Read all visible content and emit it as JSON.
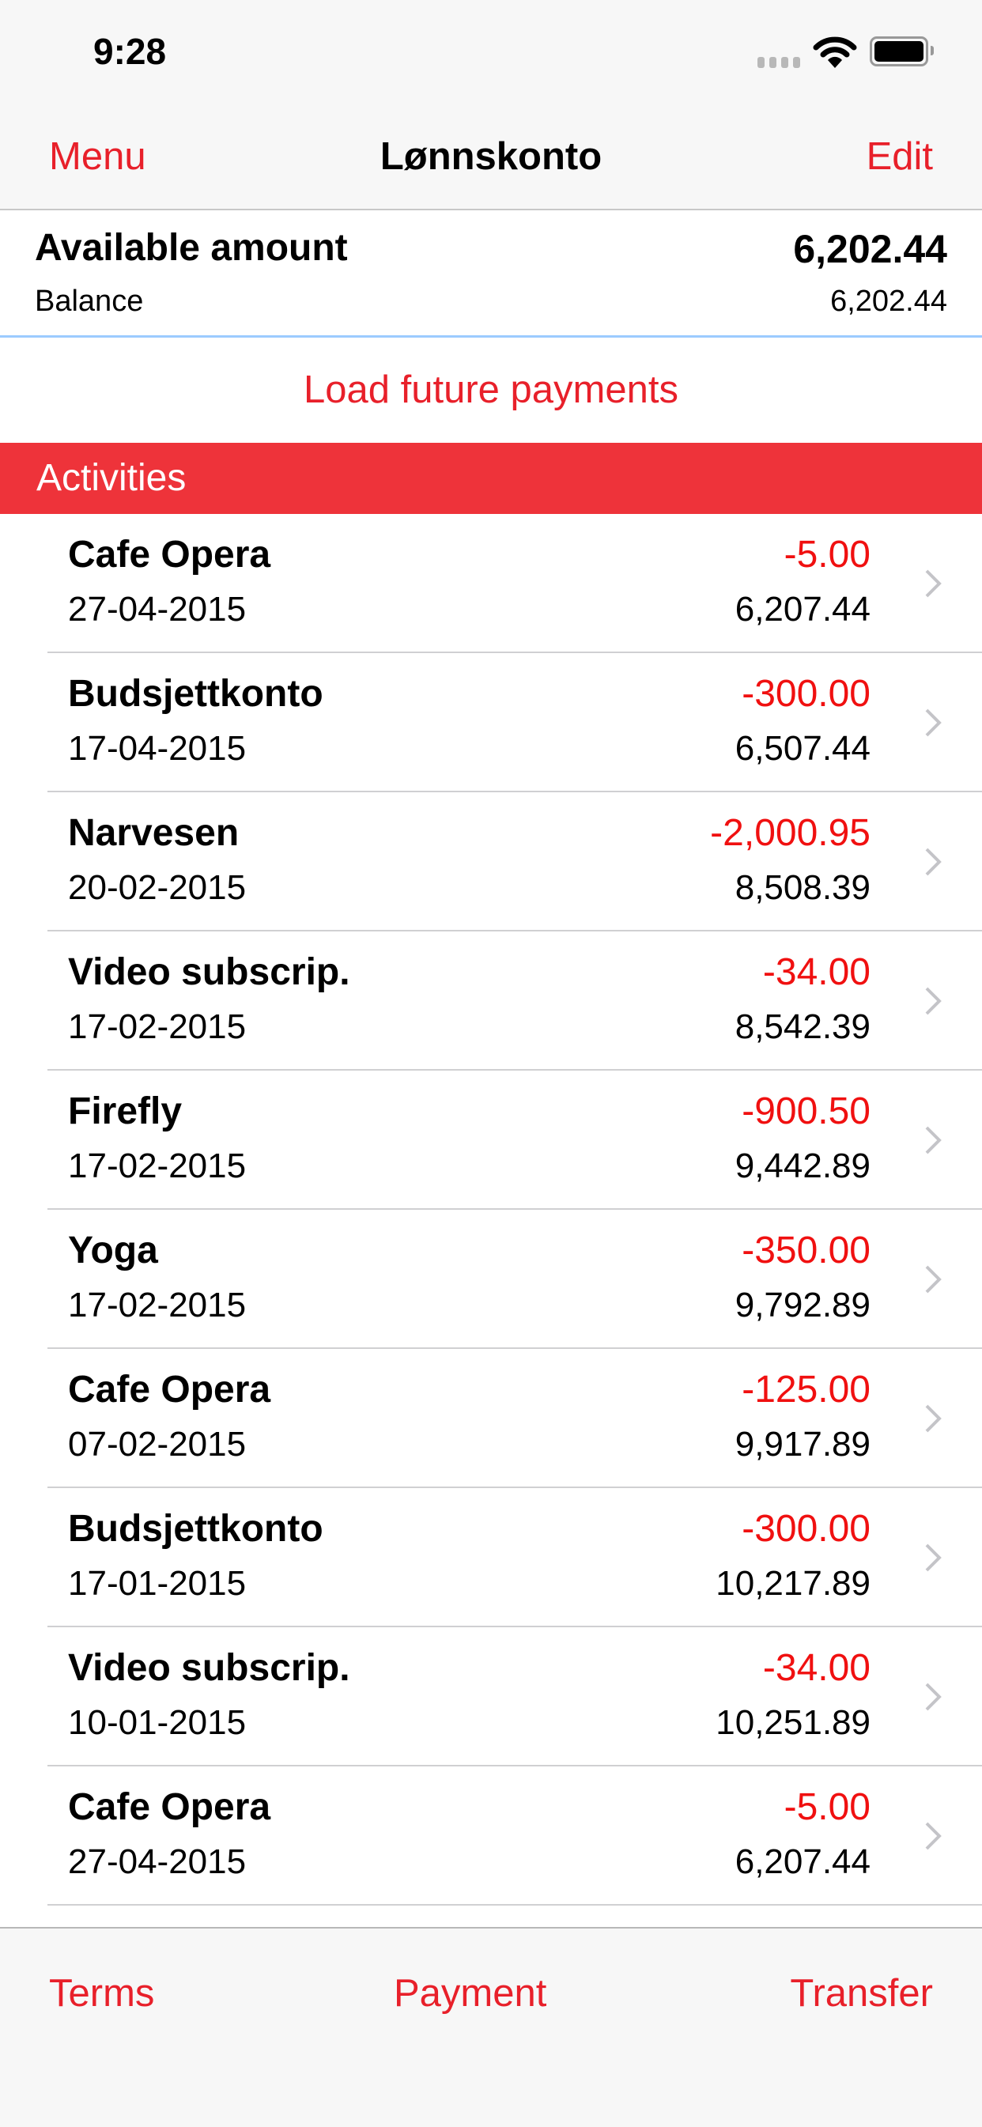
{
  "status_bar": {
    "time": "9:28"
  },
  "nav": {
    "left": "Menu",
    "title": "Lønnskonto",
    "right": "Edit"
  },
  "summary": {
    "available_label": "Available amount",
    "available_value": "6,202.44",
    "balance_label": "Balance",
    "balance_value": "6,202.44"
  },
  "load_future": "Load future payments",
  "section_title": "Activities",
  "activities": [
    {
      "name": "Cafe Opera",
      "date": "27-04-2015",
      "amount": "-5.00",
      "balance": "6,207.44"
    },
    {
      "name": "Budsjettkonto",
      "date": "17-04-2015",
      "amount": "-300.00",
      "balance": "6,507.44"
    },
    {
      "name": "Narvesen",
      "date": "20-02-2015",
      "amount": "-2,000.95",
      "balance": "8,508.39"
    },
    {
      "name": "Video subscrip.",
      "date": "17-02-2015",
      "amount": "-34.00",
      "balance": "8,542.39"
    },
    {
      "name": "Firefly",
      "date": "17-02-2015",
      "amount": "-900.50",
      "balance": "9,442.89"
    },
    {
      "name": "Yoga",
      "date": "17-02-2015",
      "amount": "-350.00",
      "balance": "9,792.89"
    },
    {
      "name": "Cafe Opera",
      "date": "07-02-2015",
      "amount": "-125.00",
      "balance": "9,917.89"
    },
    {
      "name": "Budsjettkonto",
      "date": "17-01-2015",
      "amount": "-300.00",
      "balance": "10,217.89"
    },
    {
      "name": "Video subscrip.",
      "date": "10-01-2015",
      "amount": "-34.00",
      "balance": "10,251.89"
    },
    {
      "name": "Cafe Opera",
      "date": "27-04-2015",
      "amount": "-5.00",
      "balance": "6,207.44"
    }
  ],
  "toolbar": {
    "terms": "Terms",
    "payment": "Payment",
    "transfer": "Transfer"
  },
  "colors": {
    "accent": "#e8202a",
    "section_bg": "#ee333a",
    "negative": "#f01010"
  }
}
